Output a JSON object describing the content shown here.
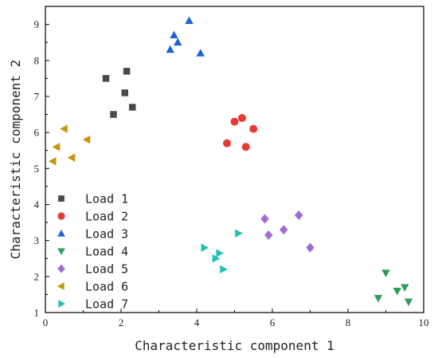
{
  "chart_data": {
    "type": "scatter",
    "xlabel": "Characteristic component 1",
    "ylabel": "Characteristic component 2",
    "xlim": [
      0,
      10
    ],
    "ylim": [
      1,
      9.5
    ],
    "xticks": [
      0,
      2,
      4,
      6,
      8,
      10
    ],
    "yticks": [
      1,
      2,
      3,
      4,
      5,
      6,
      7,
      8,
      9
    ],
    "grid": false,
    "legend": "bottom-left",
    "series": [
      {
        "name": "Load 1",
        "marker": "square",
        "color": "#4a4a4a",
        "points": [
          [
            1.6,
            7.5
          ],
          [
            2.15,
            7.7
          ],
          [
            2.1,
            7.1
          ],
          [
            2.3,
            6.7
          ],
          [
            1.8,
            6.5
          ]
        ]
      },
      {
        "name": "Load 2",
        "marker": "circle",
        "color": "#e53935",
        "points": [
          [
            5.0,
            6.3
          ],
          [
            5.2,
            6.4
          ],
          [
            5.5,
            6.1
          ],
          [
            4.8,
            5.7
          ],
          [
            5.3,
            5.6
          ]
        ]
      },
      {
        "name": "Load 3",
        "marker": "triangle-up",
        "color": "#1e63d6",
        "points": [
          [
            3.8,
            9.1
          ],
          [
            3.4,
            8.7
          ],
          [
            3.5,
            8.5
          ],
          [
            3.3,
            8.3
          ],
          [
            4.1,
            8.2
          ]
        ]
      },
      {
        "name": "Load 4",
        "marker": "triangle-down",
        "color": "#2e9e5b",
        "points": [
          [
            9.0,
            2.1
          ],
          [
            9.5,
            1.7
          ],
          [
            9.3,
            1.6
          ],
          [
            8.8,
            1.4
          ],
          [
            9.6,
            1.3
          ]
        ]
      },
      {
        "name": "Load 5",
        "marker": "diamond",
        "color": "#a26bd6",
        "points": [
          [
            6.7,
            3.7
          ],
          [
            5.8,
            3.6
          ],
          [
            6.3,
            3.3
          ],
          [
            5.9,
            3.15
          ],
          [
            7.0,
            2.8
          ]
        ]
      },
      {
        "name": "Load 6",
        "marker": "triangle-left",
        "color": "#c8960c",
        "points": [
          [
            0.5,
            6.1
          ],
          [
            0.3,
            5.6
          ],
          [
            1.1,
            5.8
          ],
          [
            0.7,
            5.3
          ],
          [
            0.2,
            5.2
          ]
        ]
      },
      {
        "name": "Load 7",
        "marker": "triangle-right",
        "color": "#1ec2b4",
        "points": [
          [
            5.1,
            3.2
          ],
          [
            4.2,
            2.8
          ],
          [
            4.6,
            2.65
          ],
          [
            4.5,
            2.5
          ],
          [
            4.7,
            2.2
          ]
        ]
      }
    ]
  }
}
